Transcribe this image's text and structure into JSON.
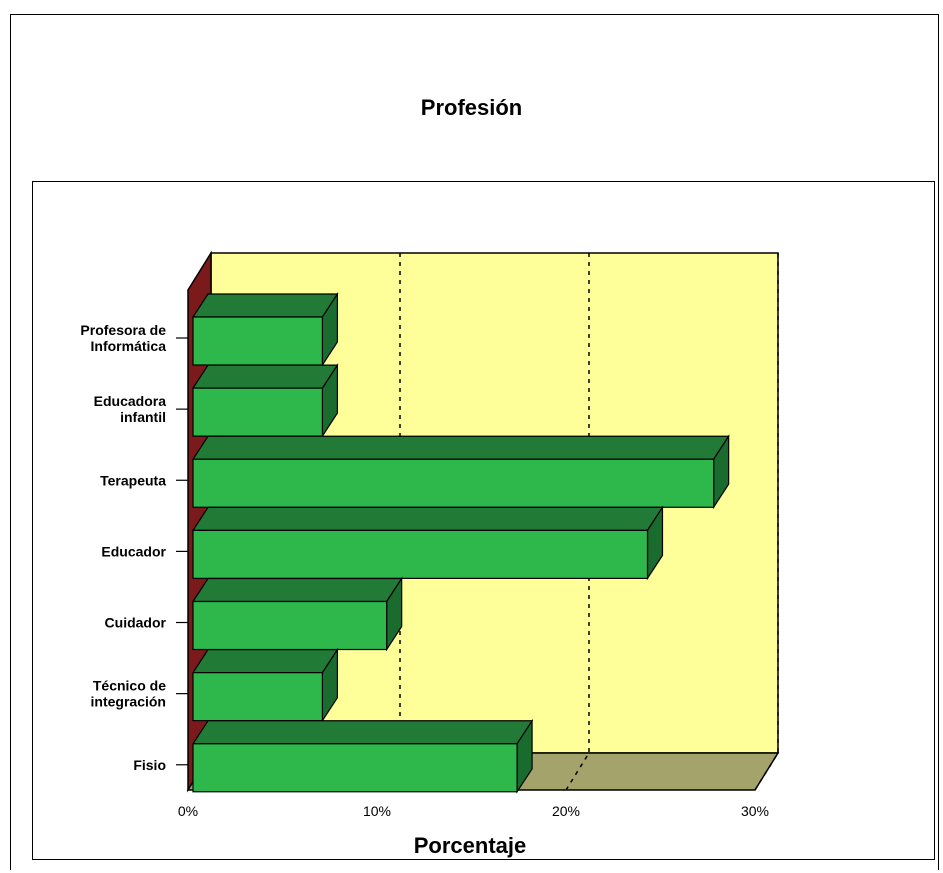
{
  "chart_data": {
    "type": "bar",
    "orientation": "horizontal",
    "title": "Profesión",
    "xlabel": "Porcentaje",
    "ylabel": "",
    "xlim": [
      0,
      30
    ],
    "x_ticks": [
      "0%",
      "10%",
      "20%",
      "30%"
    ],
    "x_tick_values": [
      0,
      10,
      20,
      30
    ],
    "grid": "vertical dashed",
    "categories": [
      [
        "Profesora de",
        "Informática"
      ],
      [
        "Educadora",
        "infantil"
      ],
      [
        "Terapeuta"
      ],
      [
        "Educador"
      ],
      [
        "Cuidador"
      ],
      [
        "Técnico de",
        "integración"
      ],
      [
        "Fisio"
      ]
    ],
    "values": [
      6.9,
      6.9,
      27.6,
      24.1,
      10.3,
      6.9,
      17.2
    ],
    "colors": {
      "bar_front": "#2eb84b",
      "bar_top": "#217a36",
      "bar_side": "#1a6b2e",
      "wall": "#ffff99",
      "floor": "#a3a36b",
      "left_wall": "#7a1a1a"
    }
  }
}
